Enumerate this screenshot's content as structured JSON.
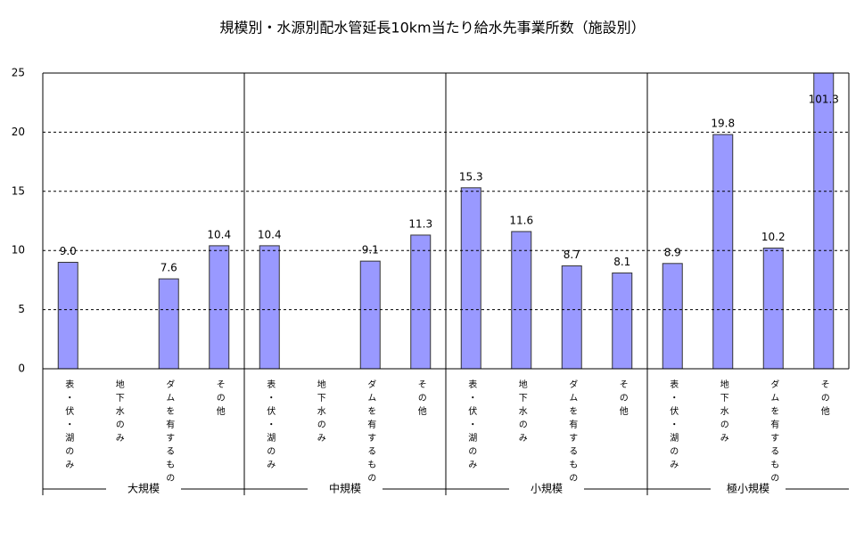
{
  "chart_data": {
    "type": "bar",
    "title": "規模別・水源別配水管延長10km当たり給水先事業所数（施設別）",
    "groups": [
      "大規模",
      "中規模",
      "小規模",
      "極小規模"
    ],
    "categories": [
      "表・伏・湖のみ",
      "地下水のみ",
      "ダムを有するもの",
      "その他",
      "表・伏・湖のみ",
      "地下水のみ",
      "ダムを有するもの",
      "その他",
      "表・伏・湖のみ",
      "地下水のみ",
      "ダムを有するもの",
      "その他",
      "表・伏・湖のみ",
      "地下水のみ",
      "ダムを有するもの",
      "その他"
    ],
    "values": [
      9.0,
      null,
      7.6,
      10.4,
      10.4,
      null,
      9.1,
      11.3,
      15.3,
      11.6,
      8.7,
      8.1,
      8.9,
      19.8,
      10.2,
      101.3
    ],
    "value_labels": [
      "9.0",
      null,
      "7.6",
      "10.4",
      "10.4",
      null,
      "9.1",
      "11.3",
      "15.3",
      "11.6",
      "8.7",
      "8.1",
      "8.9",
      "19.8",
      "10.2",
      "101.3"
    ],
    "color": "#9999ff",
    "ylim": [
      0,
      25
    ],
    "yticks": [
      0,
      5,
      10,
      15,
      20,
      25
    ],
    "grid": true
  }
}
